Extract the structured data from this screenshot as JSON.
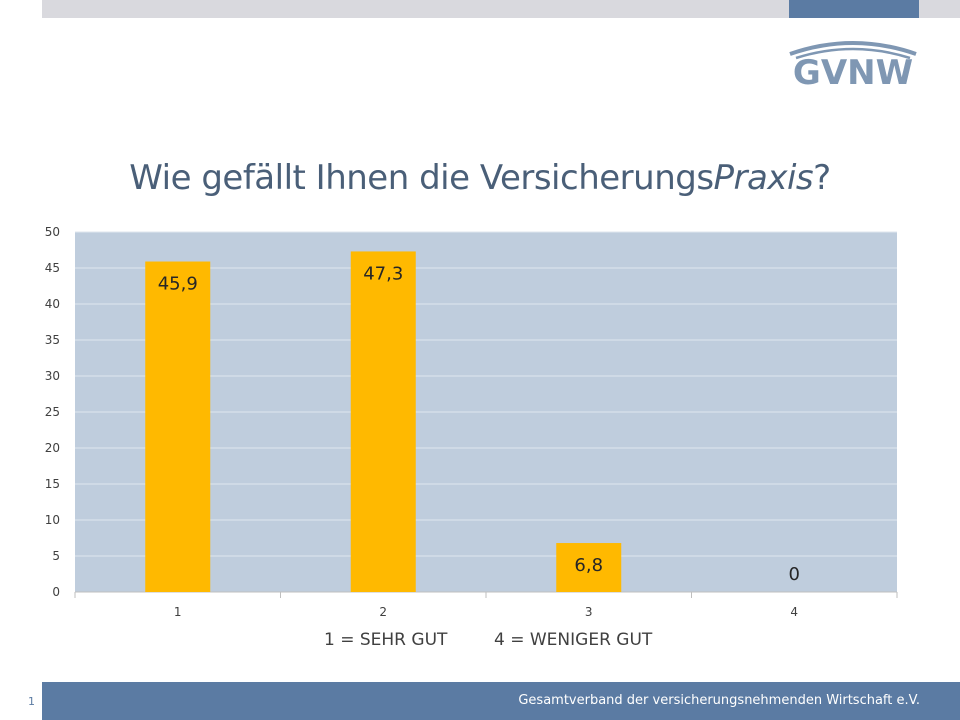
{
  "logo": {
    "text": "GVNW",
    "color": "#7f97b3"
  },
  "title": {
    "main": "Wie gefällt Ihnen die Versicherungs",
    "italic": "Praxis",
    "end": "?"
  },
  "legend": {
    "left": "1 = SEHR GUT",
    "right": "4 = WENIGER GUT"
  },
  "footer": {
    "text": "Gesamtverband der versicherungsnehmenden Wirtschaft e.V.",
    "page": "1"
  },
  "colors": {
    "bar": "#ffb900",
    "plot_bg": "#bfcddd",
    "accent": "#5b7ba3"
  },
  "chart_data": {
    "type": "bar",
    "categories": [
      "1",
      "2",
      "3",
      "4"
    ],
    "values": [
      45.9,
      47.3,
      6.8,
      0
    ],
    "data_labels": [
      "45,9",
      "47,3",
      "6,8",
      "0"
    ],
    "ylim": [
      0,
      50
    ],
    "yticks": [
      0,
      5,
      10,
      15,
      20,
      25,
      30,
      35,
      40,
      45,
      50
    ],
    "grid": true,
    "title": "Wie gefällt Ihnen die VersicherungsPraxis?",
    "xlabel": "",
    "ylabel": ""
  }
}
